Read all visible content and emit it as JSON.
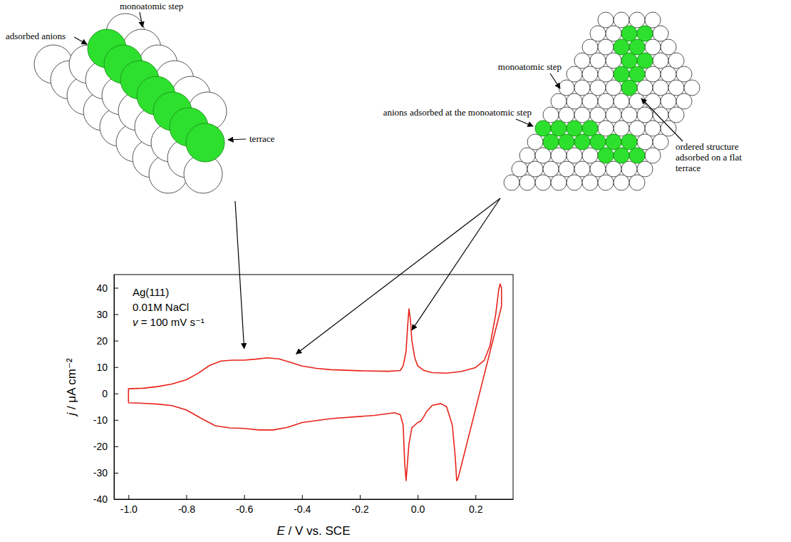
{
  "chart_data": {
    "type": "line",
    "x_label": "E / V vs. SCE",
    "y_label": "j / μA cm⁻²",
    "annotations": [
      "Ag(111)",
      "0.01M NaCl",
      "v = 100 mV s⁻¹"
    ],
    "xlim": [
      -1.05,
      0.33
    ],
    "ylim": [
      -40,
      45
    ],
    "xticks": [
      {
        "value": -1.0,
        "label": "-1.0"
      },
      {
        "value": -0.8,
        "label": "-0.8"
      },
      {
        "value": -0.6,
        "label": "-0.6"
      },
      {
        "value": -0.4,
        "label": "-0.4"
      },
      {
        "value": -0.2,
        "label": "-0.2"
      },
      {
        "value": 0.0,
        "label": "0.0"
      },
      {
        "value": 0.2,
        "label": "0.2"
      }
    ],
    "yticks": [
      -40,
      -30,
      -20,
      -10,
      0,
      10,
      20,
      30,
      40
    ],
    "grid": false,
    "x": [
      -1.0,
      -1.0,
      -0.95,
      -0.9,
      -0.85,
      -0.8,
      -0.76,
      -0.72,
      -0.68,
      -0.64,
      -0.6,
      -0.56,
      -0.52,
      -0.48,
      -0.44,
      -0.4,
      -0.35,
      -0.3,
      -0.2,
      -0.1,
      -0.06,
      -0.05,
      -0.04,
      -0.035,
      -0.03,
      -0.025,
      -0.02,
      -0.01,
      0.0,
      0.02,
      0.05,
      0.1,
      0.15,
      0.2,
      0.23,
      0.25,
      0.27,
      0.28,
      0.285,
      0.29,
      0.29,
      0.14,
      0.135,
      0.13,
      0.12,
      0.1,
      0.08,
      0.05,
      0.03,
      0.02,
      0.01,
      0.0,
      -0.02,
      -0.03,
      -0.04,
      -0.045,
      -0.05,
      -0.06,
      -0.08,
      -0.15,
      -0.3,
      -0.4,
      -0.45,
      -0.5,
      -0.55,
      -0.6,
      -0.65,
      -0.7,
      -0.75,
      -0.8,
      -0.85,
      -0.9,
      -0.95,
      -1.0
    ],
    "series": [
      {
        "color": "#e8231a",
        "values": [
          -3.5,
          1.8,
          2.0,
          2.6,
          3.6,
          5.2,
          7.6,
          10.6,
          12.3,
          12.6,
          12.6,
          13.0,
          13.5,
          13.1,
          11.8,
          10.4,
          9.5,
          9.0,
          8.6,
          8.4,
          8.7,
          10.5,
          16,
          25,
          32,
          28,
          20,
          13.5,
          10.5,
          8.8,
          7.9,
          7.7,
          8.3,
          9.8,
          12.5,
          18,
          30,
          39,
          41.5,
          40,
          33,
          -32,
          -33,
          -24,
          -12,
          -5,
          -3.8,
          -4.5,
          -7,
          -9,
          -10.5,
          -11,
          -13,
          -19,
          -33,
          -26,
          -12,
          -8,
          -7.3,
          -8.3,
          -9.5,
          -11,
          -12.8,
          -13.8,
          -13.8,
          -13.2,
          -13.0,
          -12.2,
          -9.3,
          -6.2,
          -4.6,
          -4.0,
          -3.7,
          -3.5
        ]
      }
    ]
  },
  "diagrams": [
    {
      "labels": [
        "adsorbed anions",
        "monoatomic step",
        "terrace"
      ],
      "targets": [
        [
          -0.6,
          17
        ]
      ]
    },
    {
      "labels": [
        "monoatomic step",
        "anions adsorbed at the monoatomic step",
        "ordered structure adsorbed on a flat terrace"
      ],
      "targets": [
        [
          -0.42,
          15
        ],
        [
          -0.02,
          24
        ]
      ]
    }
  ]
}
